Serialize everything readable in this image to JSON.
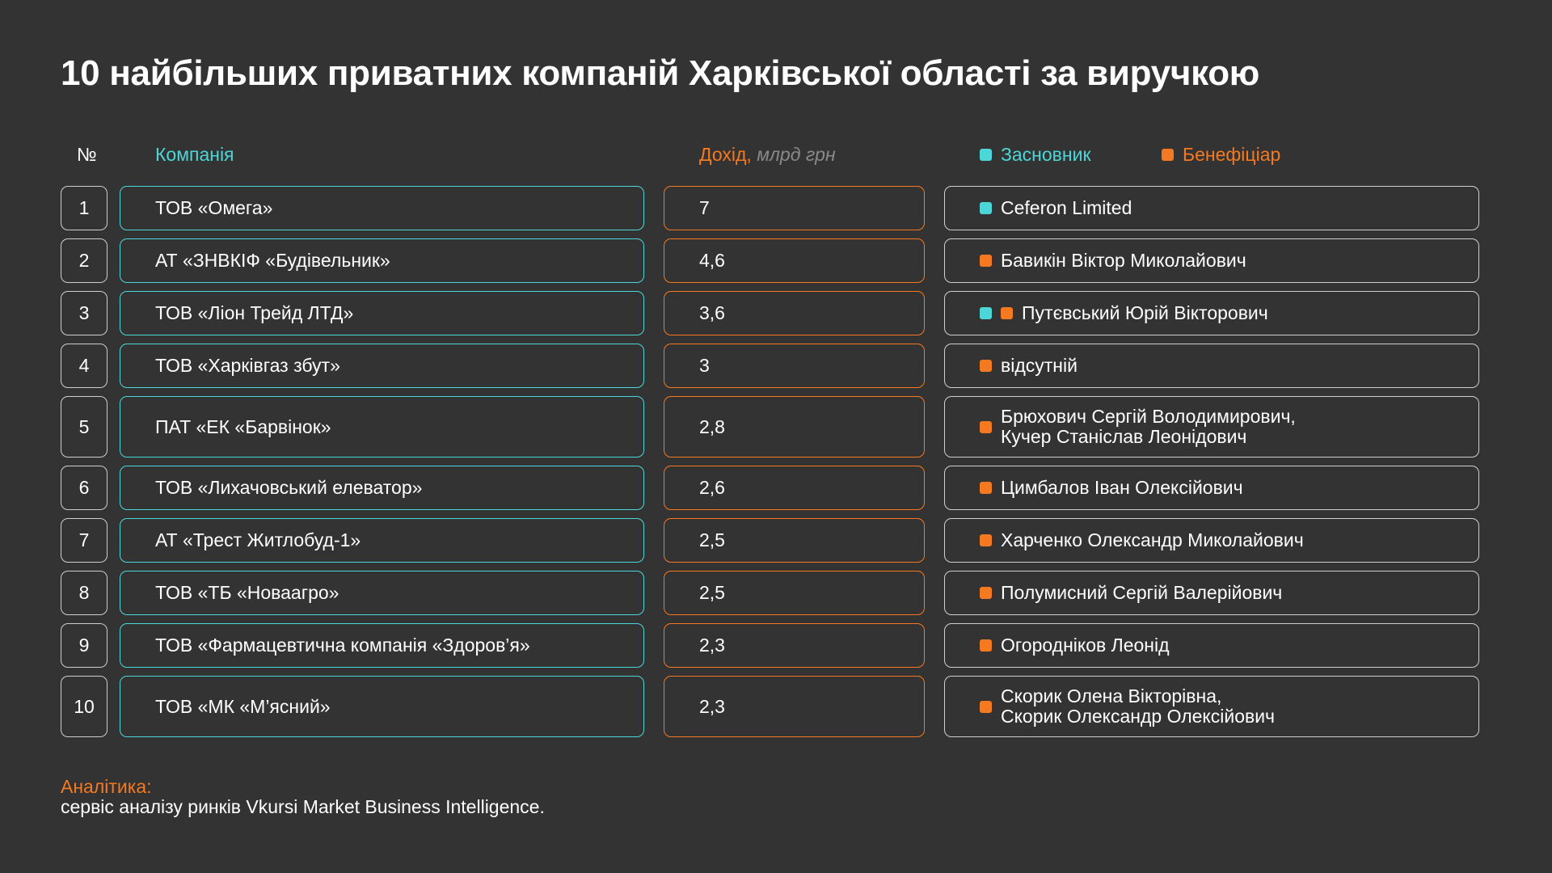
{
  "title": "10 найбільших приватних компаній Харківської області за виручкою",
  "headers": {
    "num": "№",
    "company": "Компанія",
    "revenue": "Дохід,",
    "revenue_unit": "млрд грн",
    "founder": "Засновник",
    "beneficiary": "Бенефіціар"
  },
  "colors": {
    "teal": "#4cd6d8",
    "orange": "#f47920",
    "background": "#333333"
  },
  "chart_data": {
    "type": "table",
    "columns": [
      "№",
      "Компанія",
      "Дохід, млрд грн",
      "Засновник / Бенефіціар"
    ],
    "rows": [
      {
        "num": "1",
        "company": "ТОВ «Омега»",
        "revenue": "7",
        "markers": [
          "founder"
        ],
        "owner": "Ceferon Limited"
      },
      {
        "num": "2",
        "company": "АТ «ЗНВКІФ «Будівельник»",
        "revenue": "4,6",
        "markers": [
          "beneficiary"
        ],
        "owner": "Бавикін Віктор Миколайович"
      },
      {
        "num": "3",
        "company": "ТОВ «Ліон Трейд ЛТД»",
        "revenue": "3,6",
        "markers": [
          "founder",
          "beneficiary"
        ],
        "owner": "Путєвський Юрій Вікторович"
      },
      {
        "num": "4",
        "company": "ТОВ «Харківгаз збут»",
        "revenue": "3",
        "markers": [
          "beneficiary"
        ],
        "owner": "відсутній"
      },
      {
        "num": "5",
        "company": "ПАТ «ЕК «Барвінок»",
        "revenue": "2,8",
        "markers": [
          "beneficiary"
        ],
        "owner": "Брюхович Сергій Володимирович,\nКучер Станіслав Леонідович"
      },
      {
        "num": "6",
        "company": "ТОВ «Лихачовський елеватор»",
        "revenue": "2,6",
        "markers": [
          "beneficiary"
        ],
        "owner": "Цимбалов Іван Олексійович"
      },
      {
        "num": "7",
        "company": "АТ «Трест Житлобуд-1»",
        "revenue": "2,5",
        "markers": [
          "beneficiary"
        ],
        "owner": "Харченко Олександр Миколайович"
      },
      {
        "num": "8",
        "company": "ТОВ «ТБ «Новаагро»",
        "revenue": "2,5",
        "markers": [
          "beneficiary"
        ],
        "owner": "Полумисний Сергій Валерійович"
      },
      {
        "num": "9",
        "company": "ТОВ «Фармацевтична компанія «Здоров’я»",
        "revenue": "2,3",
        "markers": [
          "beneficiary"
        ],
        "owner": "Огородніков Леонід"
      },
      {
        "num": "10",
        "company": "ТОВ «МК «М’ясний»",
        "revenue": "2,3",
        "markers": [
          "beneficiary"
        ],
        "owner": "Скорик Олена Вікторівна,\nСкорик Олександр Олексійович"
      }
    ]
  },
  "footer": {
    "label": "Аналітика:",
    "text": "сервіс аналізу ринків Vkursi Market Business Intelligence."
  }
}
